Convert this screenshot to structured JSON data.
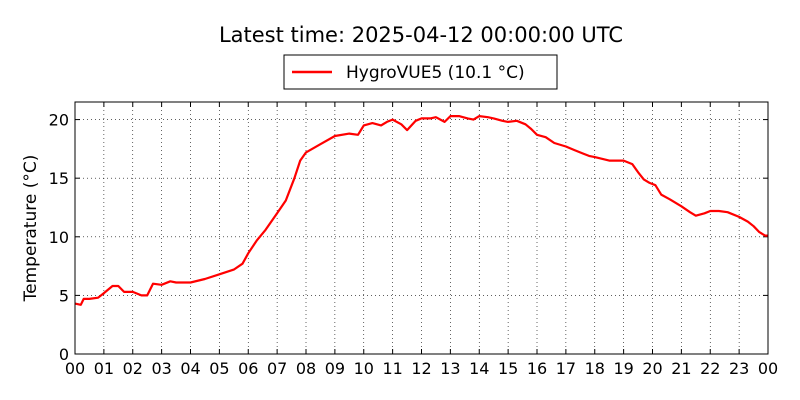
{
  "chart_data": {
    "type": "line",
    "title": "Latest time: 2025-04-12 00:00:00 UTC",
    "xlabel": "",
    "ylabel": "Temperature (°C)",
    "xlim": [
      0,
      24
    ],
    "ylim": [
      0,
      21.5
    ],
    "grid": true,
    "legend_placement": "top-center",
    "x_ticks": [
      0,
      1,
      2,
      3,
      4,
      5,
      6,
      7,
      8,
      9,
      10,
      11,
      12,
      13,
      14,
      15,
      16,
      17,
      18,
      19,
      20,
      21,
      22,
      23,
      24
    ],
    "x_tick_labels": [
      "00",
      "01",
      "02",
      "03",
      "04",
      "05",
      "06",
      "07",
      "08",
      "09",
      "10",
      "11",
      "12",
      "13",
      "14",
      "15",
      "16",
      "17",
      "18",
      "19",
      "20",
      "21",
      "22",
      "23",
      "00"
    ],
    "y_ticks": [
      0,
      5,
      10,
      15,
      20
    ],
    "y_tick_labels": [
      "0",
      "5",
      "10",
      "15",
      "20"
    ],
    "series": [
      {
        "name": "HygroVUE5 (10.1 °C)",
        "color": "#ff0000",
        "x": [
          0,
          0.2,
          0.3,
          0.5,
          0.8,
          1.0,
          1.3,
          1.5,
          1.7,
          2.0,
          2.3,
          2.5,
          2.7,
          3.0,
          3.3,
          3.5,
          4.0,
          4.5,
          5.0,
          5.5,
          5.8,
          6.0,
          6.3,
          6.6,
          7.0,
          7.3,
          7.6,
          7.8,
          8.0,
          8.5,
          9.0,
          9.5,
          9.8,
          10.0,
          10.3,
          10.6,
          10.8,
          11.0,
          11.3,
          11.5,
          11.8,
          12.0,
          12.3,
          12.5,
          12.8,
          13.0,
          13.3,
          13.6,
          13.8,
          14.0,
          14.3,
          14.5,
          14.8,
          15.0,
          15.3,
          15.6,
          15.8,
          16.0,
          16.3,
          16.6,
          17.0,
          17.3,
          17.6,
          17.8,
          18.0,
          18.5,
          19.0,
          19.3,
          19.5,
          19.7,
          19.9,
          20.1,
          20.3,
          20.6,
          21.0,
          21.3,
          21.5,
          21.8,
          22.0,
          22.3,
          22.6,
          23.0,
          23.3,
          23.5,
          23.7,
          23.9,
          24.0
        ],
        "y": [
          4.3,
          4.2,
          4.7,
          4.7,
          4.8,
          5.2,
          5.8,
          5.8,
          5.3,
          5.3,
          5.0,
          5.0,
          6.0,
          5.9,
          6.2,
          6.1,
          6.1,
          6.4,
          6.8,
          7.2,
          7.7,
          8.6,
          9.7,
          10.6,
          12.0,
          13.1,
          15.0,
          16.5,
          17.2,
          17.9,
          18.6,
          18.8,
          18.7,
          19.5,
          19.7,
          19.5,
          19.8,
          20.0,
          19.6,
          19.1,
          19.9,
          20.1,
          20.1,
          20.2,
          19.8,
          20.3,
          20.3,
          20.1,
          20.0,
          20.3,
          20.2,
          20.1,
          19.9,
          19.8,
          19.9,
          19.6,
          19.2,
          18.7,
          18.5,
          18.0,
          17.7,
          17.4,
          17.1,
          16.9,
          16.8,
          16.5,
          16.5,
          16.2,
          15.5,
          14.9,
          14.6,
          14.4,
          13.6,
          13.2,
          12.6,
          12.1,
          11.8,
          12.0,
          12.2,
          12.2,
          12.1,
          11.7,
          11.3,
          10.9,
          10.4,
          10.1,
          10.1
        ]
      }
    ]
  }
}
